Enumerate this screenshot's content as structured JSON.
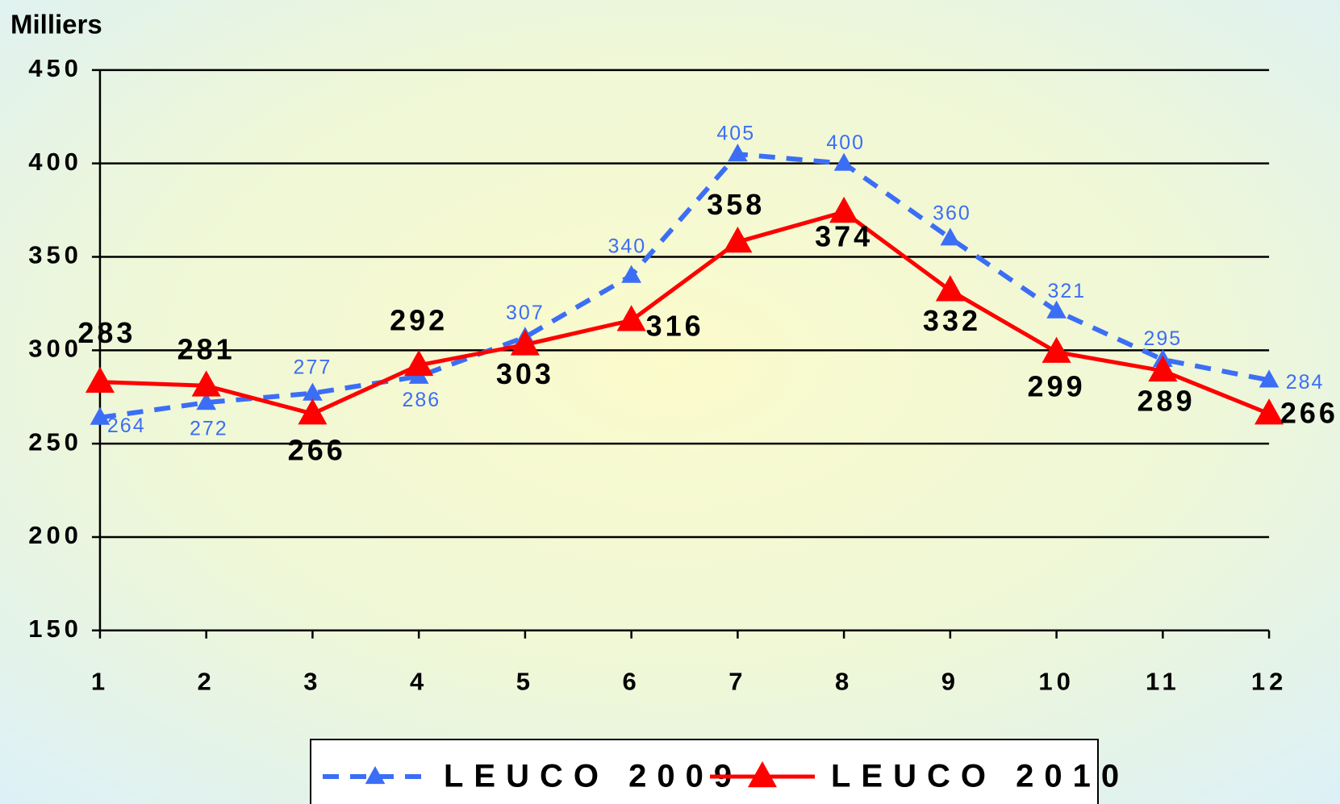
{
  "chart_data": {
    "type": "line",
    "y_label": "Milliers",
    "x": [
      1,
      2,
      3,
      4,
      5,
      6,
      7,
      8,
      9,
      10,
      11,
      12
    ],
    "xlim": [
      1,
      12
    ],
    "xticks": [
      1,
      2,
      3,
      4,
      5,
      6,
      7,
      8,
      9,
      10,
      11,
      12
    ],
    "ylim": [
      150,
      450
    ],
    "yticks": [
      150,
      200,
      250,
      300,
      350,
      400,
      450
    ],
    "grid": true,
    "legend": "bottom",
    "series": [
      {
        "name": "LEUCO 2009",
        "color": "#3c6ef5",
        "style": "dashed",
        "values": [
          264,
          272,
          277,
          286,
          307,
          340,
          405,
          400,
          360,
          321,
          295,
          284
        ]
      },
      {
        "name": "LEUCO 2010",
        "color": "#ff0000",
        "style": "solid",
        "values": [
          283,
          281,
          266,
          292,
          303,
          316,
          358,
          374,
          332,
          299,
          289,
          266
        ]
      }
    ]
  }
}
